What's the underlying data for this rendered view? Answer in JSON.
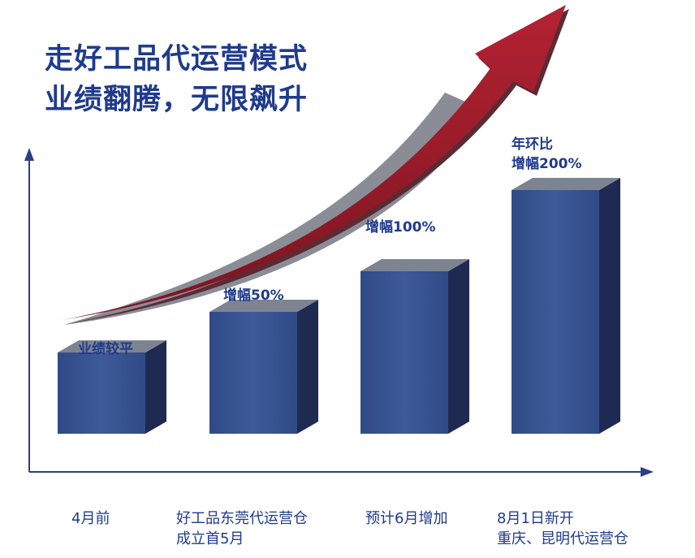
{
  "title": {
    "line1": "走好工品代运营模式",
    "line2": "业绩翻腾，无限飙升"
  },
  "colors": {
    "title": "#1f3b8c",
    "bar_front": "#3a548f",
    "bar_top": "#7d8391",
    "bar_side": "#1f2a52",
    "arrow": "#9b1c2c",
    "axis": "#2b3f86"
  },
  "chart_data": {
    "type": "bar",
    "title": "走好工品代运营模式 业绩翻腾，无限飙升",
    "categories": [
      [
        "4月前"
      ],
      [
        "好工品东莞代运营仓",
        "成立首5月"
      ],
      [
        "预计6月增加"
      ],
      [
        "8月1日新开",
        "重庆、昆明代运营仓"
      ]
    ],
    "values": [
      1,
      1.5,
      2,
      3
    ],
    "value_labels": [
      [
        "业绩较平"
      ],
      [
        "增幅50%"
      ],
      [
        "增幅100%"
      ],
      [
        "年环比",
        "增幅200%"
      ]
    ],
    "xlabel": "",
    "ylabel": "",
    "ylim": [
      0,
      4
    ],
    "grid": false,
    "legend": "none",
    "trend_arrow": true
  }
}
